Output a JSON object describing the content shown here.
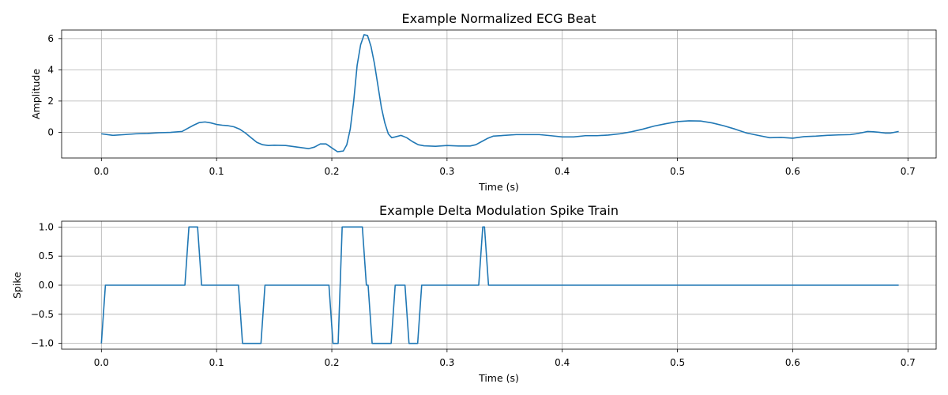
{
  "figure": {
    "background": "#ffffff"
  },
  "style": {
    "line_color": "#1f77b4",
    "grid_color": "#b0b0b0",
    "axis_color": "#000000"
  },
  "chart_data": [
    {
      "type": "line",
      "title": "Example Normalized ECG Beat",
      "xlabel": "Time (s)",
      "ylabel": "Amplitude",
      "xlim": [
        -0.0345,
        0.7245
      ],
      "ylim": [
        -1.65,
        6.55
      ],
      "xticks": [
        0.0,
        0.1,
        0.2,
        0.3,
        0.4,
        0.5,
        0.6,
        0.7
      ],
      "xtick_labels": [
        "0.0",
        "0.1",
        "0.2",
        "0.3",
        "0.4",
        "0.5",
        "0.6",
        "0.7"
      ],
      "yticks": [
        0,
        2,
        4,
        6
      ],
      "ytick_labels": [
        "0",
        "2",
        "4",
        "6"
      ],
      "grid": true,
      "series": [
        {
          "x": [
            0.0,
            0.01,
            0.02,
            0.03,
            0.04,
            0.05,
            0.06,
            0.07,
            0.075,
            0.08,
            0.085,
            0.09,
            0.095,
            0.1,
            0.105,
            0.11,
            0.115,
            0.12,
            0.125,
            0.13,
            0.135,
            0.14,
            0.145,
            0.15,
            0.16,
            0.17,
            0.18,
            0.185,
            0.19,
            0.195,
            0.2,
            0.205,
            0.21,
            0.213,
            0.216,
            0.219,
            0.222,
            0.225,
            0.228,
            0.231,
            0.234,
            0.237,
            0.24,
            0.243,
            0.246,
            0.249,
            0.252,
            0.255,
            0.26,
            0.265,
            0.27,
            0.275,
            0.28,
            0.29,
            0.3,
            0.31,
            0.32,
            0.325,
            0.33,
            0.335,
            0.34,
            0.36,
            0.38,
            0.39,
            0.4,
            0.41,
            0.42,
            0.43,
            0.44,
            0.45,
            0.46,
            0.47,
            0.48,
            0.49,
            0.5,
            0.51,
            0.52,
            0.53,
            0.54,
            0.55,
            0.56,
            0.57,
            0.58,
            0.59,
            0.6,
            0.61,
            0.62,
            0.63,
            0.64,
            0.65,
            0.655,
            0.66,
            0.665,
            0.67,
            0.675,
            0.68,
            0.685,
            0.692
          ],
          "y": [
            -0.1,
            -0.2,
            -0.15,
            -0.1,
            -0.08,
            -0.03,
            -0.01,
            0.05,
            0.25,
            0.45,
            0.62,
            0.66,
            0.6,
            0.5,
            0.45,
            0.42,
            0.35,
            0.2,
            -0.05,
            -0.35,
            -0.65,
            -0.8,
            -0.85,
            -0.83,
            -0.85,
            -0.95,
            -1.05,
            -0.95,
            -0.75,
            -0.75,
            -1.0,
            -1.25,
            -1.2,
            -0.8,
            0.2,
            2.0,
            4.3,
            5.6,
            6.25,
            6.2,
            5.5,
            4.4,
            3.0,
            1.6,
            0.6,
            -0.1,
            -0.35,
            -0.3,
            -0.2,
            -0.35,
            -0.6,
            -0.8,
            -0.87,
            -0.9,
            -0.85,
            -0.88,
            -0.88,
            -0.8,
            -0.6,
            -0.4,
            -0.25,
            -0.15,
            -0.15,
            -0.22,
            -0.3,
            -0.3,
            -0.22,
            -0.22,
            -0.18,
            -0.1,
            0.03,
            0.2,
            0.4,
            0.55,
            0.68,
            0.73,
            0.72,
            0.6,
            0.42,
            0.2,
            -0.05,
            -0.2,
            -0.35,
            -0.33,
            -0.38,
            -0.28,
            -0.25,
            -0.2,
            -0.17,
            -0.15,
            -0.1,
            -0.03,
            0.05,
            0.03,
            0.0,
            -0.05,
            -0.05,
            0.05
          ]
        }
      ]
    },
    {
      "type": "line",
      "title": "Example Delta Modulation Spike Train",
      "xlabel": "Time (s)",
      "ylabel": "Spike",
      "xlim": [
        -0.0345,
        0.7245
      ],
      "ylim": [
        -1.1,
        1.1
      ],
      "xticks": [
        0.0,
        0.1,
        0.2,
        0.3,
        0.4,
        0.5,
        0.6,
        0.7
      ],
      "xtick_labels": [
        "0.0",
        "0.1",
        "0.2",
        "0.3",
        "0.4",
        "0.5",
        "0.6",
        "0.7"
      ],
      "yticks": [
        -1.0,
        -0.5,
        0.0,
        0.5,
        1.0
      ],
      "ytick_labels": [
        "−1.0",
        "−0.5",
        "0.0",
        "0.5",
        "1.0"
      ],
      "grid": true,
      "series": [
        {
          "x": [
            0.0,
            0.0035,
            0.0725,
            0.076,
            0.0835,
            0.087,
            0.119,
            0.1225,
            0.1385,
            0.142,
            0.1975,
            0.201,
            0.2055,
            0.209,
            0.2265,
            0.23,
            0.2315,
            0.235,
            0.2515,
            0.255,
            0.2635,
            0.267,
            0.2745,
            0.278,
            0.3275,
            0.331,
            0.3325,
            0.336,
            0.692
          ],
          "y": [
            -1,
            0,
            0,
            1,
            1,
            0,
            0,
            -1,
            -1,
            0,
            0,
            -1,
            -1,
            1,
            1,
            0,
            0,
            -1,
            -1,
            0,
            0,
            -1,
            -1,
            0,
            0,
            1,
            1,
            0,
            0
          ]
        }
      ]
    }
  ]
}
